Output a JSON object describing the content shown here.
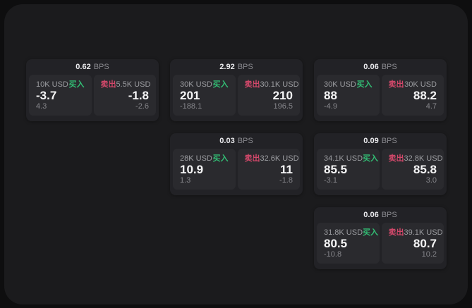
{
  "labels": {
    "bps_unit": "BPS",
    "buy": "买入",
    "sell": "卖出"
  },
  "colors": {
    "buy_green": "#32bd74",
    "sell_red": "#d2486a",
    "board_bg": "#1b1b1d",
    "card_bg": "#222226",
    "tile_bg": "#2a2a2e"
  },
  "cards": [
    {
      "bps": "0.62",
      "buy": {
        "amount": "10K USD",
        "value": "-3.7",
        "sub": "4.3"
      },
      "sell": {
        "amount": "5.5K USD",
        "value": "-1.8",
        "sub": "-2.6"
      }
    },
    {
      "bps": "2.92",
      "buy": {
        "amount": "30K USD",
        "value": "201",
        "sub": "-188.1"
      },
      "sell": {
        "amount": "30.1K USD",
        "value": "210",
        "sub": "196.5"
      }
    },
    {
      "bps": "0.06",
      "buy": {
        "amount": "30K USD",
        "value": "88",
        "sub": "-4.9"
      },
      "sell": {
        "amount": "30K USD",
        "value": "88.2",
        "sub": "4.7"
      }
    },
    {
      "bps": "0.03",
      "buy": {
        "amount": "28K USD",
        "value": "10.9",
        "sub": "1.3"
      },
      "sell": {
        "amount": "32.6K USD",
        "value": "11",
        "sub": "-1.8"
      }
    },
    {
      "bps": "0.09",
      "buy": {
        "amount": "34.1K USD",
        "value": "85.5",
        "sub": "-3.1"
      },
      "sell": {
        "amount": "32.8K USD",
        "value": "85.8",
        "sub": "3.0"
      }
    },
    {
      "bps": "0.06",
      "buy": {
        "amount": "31.8K USD",
        "value": "80.5",
        "sub": "-10.8"
      },
      "sell": {
        "amount": "39.1K USD",
        "value": "80.7",
        "sub": "10.2"
      }
    }
  ]
}
